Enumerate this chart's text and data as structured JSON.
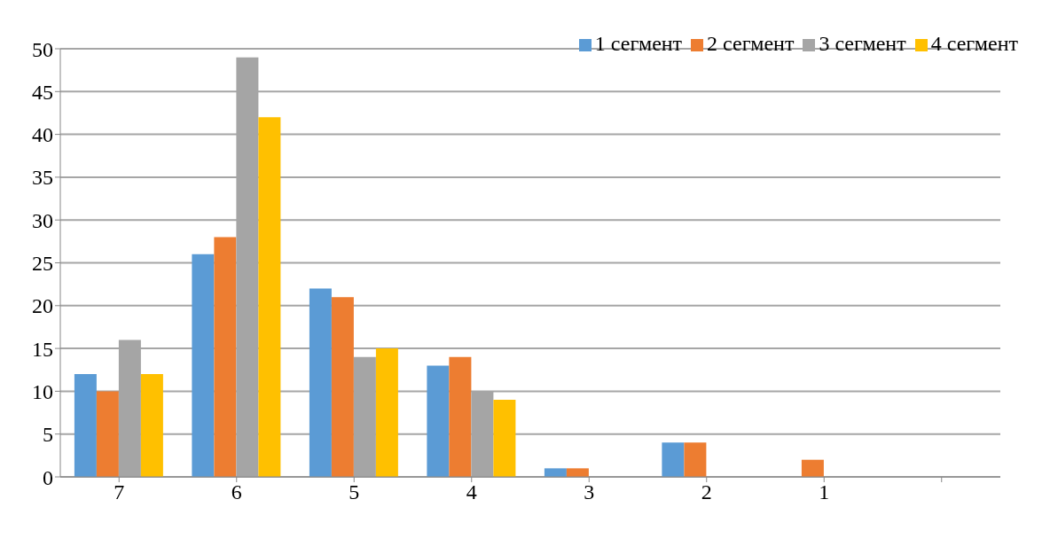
{
  "chart_data": {
    "type": "bar",
    "categories": [
      "7",
      "6",
      "5",
      "4",
      "3",
      "2",
      "1",
      null
    ],
    "series": [
      {
        "name": "1 сегмент",
        "color": "#5b9bd5",
        "values": [
          12,
          26,
          22,
          13,
          1,
          4,
          0,
          null
        ]
      },
      {
        "name": "2 сегмент",
        "color": "#ed7d31",
        "values": [
          10,
          28,
          21,
          14,
          1,
          4,
          2,
          null
        ]
      },
      {
        "name": "3 сегмент",
        "color": "#a5a5a5",
        "values": [
          16,
          49,
          14,
          10,
          0,
          0,
          0,
          null
        ]
      },
      {
        "name": "4 сегмент",
        "color": "#ffc000",
        "values": [
          12,
          42,
          15,
          9,
          0,
          0,
          0,
          null
        ]
      }
    ],
    "ylim": [
      0,
      50
    ],
    "yticks": [
      0,
      5,
      10,
      15,
      20,
      25,
      30,
      35,
      40,
      45,
      50
    ],
    "grid": "y",
    "legend": "top right"
  }
}
